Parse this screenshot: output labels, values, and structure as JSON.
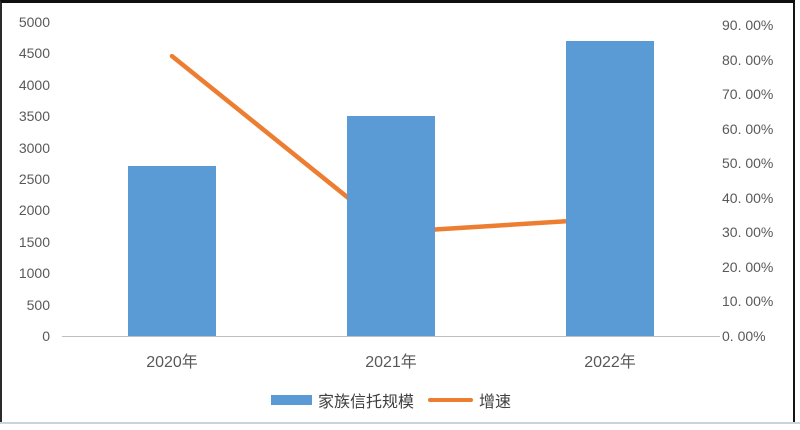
{
  "chart_data": {
    "type": "combo-bar-line",
    "title": "",
    "categories": [
      "2020年",
      "2021年",
      "2022年"
    ],
    "series": [
      {
        "name": "家族信托规模",
        "chart_type": "bar",
        "axis": "left",
        "values": [
          2700,
          3500,
          4700
        ],
        "color": "#5B9BD5"
      },
      {
        "name": "增速",
        "chart_type": "line",
        "axis": "right",
        "values": [
          81,
          30,
          34
        ],
        "unit": "%",
        "color": "#ED7D31"
      }
    ],
    "left_axis": {
      "min": 0,
      "max": 5000,
      "step": 500,
      "tick_labels": [
        "5000",
        "4500",
        "4000",
        "3500",
        "3000",
        "2500",
        "2000",
        "1500",
        "1000",
        "500",
        "0"
      ]
    },
    "right_axis": {
      "min": 0,
      "max": 90,
      "step": 10,
      "tick_labels": [
        "90. 00%",
        "80. 00%",
        "70. 00%",
        "60. 00%",
        "50. 00%",
        "40. 00%",
        "30. 00%",
        "20. 00%",
        "10. 00%",
        "0. 00%"
      ]
    },
    "legend": {
      "position": "bottom",
      "items": [
        {
          "label": "家族信托规模",
          "swatch": "bar"
        },
        {
          "label": "增速",
          "swatch": "line"
        }
      ]
    },
    "grid": false
  },
  "style": {
    "bar_color": "#5B9BD5",
    "line_color": "#ED7D31",
    "tick_text_color": "#595959",
    "category_text_color": "#595959",
    "legend_text_color": "#3f3f3f",
    "axis_line_color": "#BFBFBF",
    "frame_border_color": "#141414",
    "bottom_rule_color": "#cdd3da"
  }
}
